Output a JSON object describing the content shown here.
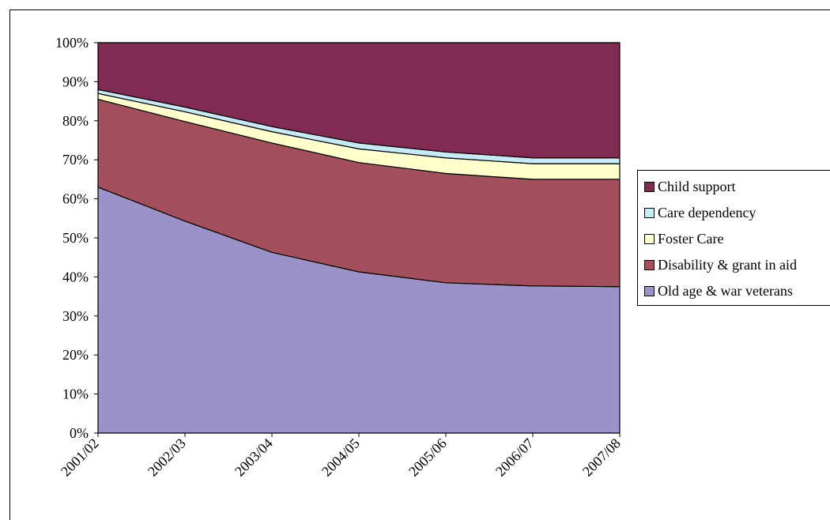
{
  "chart_data": {
    "type": "area",
    "stacked": true,
    "percent": true,
    "categories": [
      "2001/02",
      "2002/03",
      "2003/04",
      "2004/05",
      "2005/06",
      "2006/07",
      "2007/08"
    ],
    "y_ticks": [
      "0%",
      "10%",
      "20%",
      "30%",
      "40%",
      "50%",
      "60%",
      "70%",
      "80%",
      "90%",
      "100%"
    ],
    "ylim": [
      0,
      100
    ],
    "series": [
      {
        "name": "Old age & war veterans",
        "color": "#9a92c8",
        "values": [
          63,
          54.3,
          46.3,
          41.3,
          38.5,
          37.7,
          37.5
        ]
      },
      {
        "name": "Disability & grant in aid",
        "color": "#a4505c",
        "values": [
          22.5,
          25.5,
          28,
          28,
          28,
          27.3,
          27.5
        ]
      },
      {
        "name": "Foster Care",
        "color": "#ffffcc",
        "values": [
          1.5,
          2.5,
          2.9,
          3.5,
          4,
          4,
          4
        ]
      },
      {
        "name": "Care dependency",
        "color": "#c6ebf6",
        "values": [
          1,
          1.2,
          1.3,
          1.5,
          1.5,
          1.5,
          1.5
        ]
      },
      {
        "name": "Child support",
        "color": "#822b52",
        "values": [
          12,
          16.5,
          21.5,
          25.7,
          28,
          29.5,
          29.5
        ]
      }
    ],
    "legend_position": "right"
  },
  "legend": {
    "items": [
      "Child support",
      "Care dependency",
      "Foster Care",
      "Disability & grant in aid",
      "Old age & war veterans"
    ]
  }
}
